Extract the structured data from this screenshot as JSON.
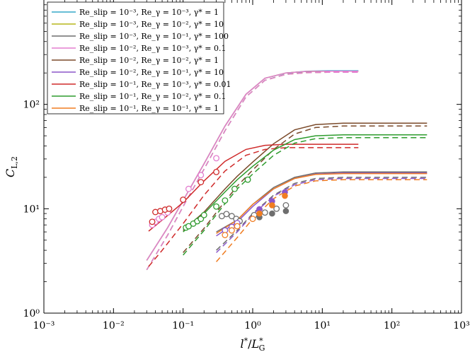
{
  "chart_data": {
    "type": "line",
    "title": "",
    "xlabel": "l*/L*_G",
    "ylabel": "C_L,2",
    "xscale": "log",
    "yscale": "log",
    "xlim": [
      0.001,
      1000
    ],
    "ylim": [
      1,
      1000
    ],
    "x_ticks": [
      0.001,
      0.01,
      0.1,
      1,
      10,
      100,
      1000
    ],
    "x_tick_labels": [
      "10⁻³",
      "10⁻²",
      "10⁻¹",
      "10⁰",
      "10¹",
      "10²",
      "10³"
    ],
    "y_ticks": [
      1,
      10,
      100
    ],
    "y_tick_labels": [
      "10⁰",
      "10¹",
      "10²"
    ],
    "legend_position": "top-left",
    "series": [
      {
        "name": "Re_slip = 10⁻³, Re_γ = 10⁻³, γ* = 1",
        "color": "#35a8c9",
        "solid": [
          [
            0.03,
            3.2
          ],
          [
            0.06,
            6.6
          ],
          [
            0.1,
            12
          ],
          [
            0.2,
            27
          ],
          [
            0.4,
            62
          ],
          [
            0.8,
            125
          ],
          [
            1.5,
            178
          ],
          [
            3,
            200
          ],
          [
            6,
            208
          ],
          [
            12,
            210
          ],
          [
            33,
            210
          ]
        ],
        "dashed": [
          [
            0.03,
            2.6
          ],
          [
            0.06,
            5.6
          ],
          [
            0.1,
            10.5
          ],
          [
            0.2,
            24
          ],
          [
            0.4,
            56
          ],
          [
            0.8,
            118
          ],
          [
            1.5,
            170
          ],
          [
            3,
            195
          ],
          [
            6,
            203
          ],
          [
            12,
            205
          ],
          [
            33,
            205
          ]
        ],
        "markers_open": [],
        "markers_filled": []
      },
      {
        "name": "Re_slip = 10⁻³, Re_γ = 10⁻², γ* = 10",
        "color": "#b5b61a",
        "solid": [
          [
            0.03,
            3.2
          ],
          [
            0.06,
            6.6
          ],
          [
            0.1,
            12
          ],
          [
            0.2,
            27
          ],
          [
            0.4,
            62
          ],
          [
            0.8,
            125
          ],
          [
            1.5,
            178
          ],
          [
            3,
            200
          ],
          [
            6,
            207
          ],
          [
            12,
            208
          ],
          [
            33,
            208
          ]
        ],
        "dashed": [
          [
            0.03,
            2.6
          ],
          [
            0.06,
            5.6
          ],
          [
            0.1,
            10.5
          ],
          [
            0.2,
            24
          ],
          [
            0.4,
            56
          ],
          [
            0.8,
            118
          ],
          [
            1.5,
            170
          ],
          [
            3,
            194
          ],
          [
            6,
            201
          ],
          [
            12,
            203
          ],
          [
            33,
            203
          ]
        ],
        "markers_open": [],
        "markers_filled": []
      },
      {
        "name": "Re_slip = 10⁻³, Re_γ = 10⁻¹, γ* = 100",
        "color": "#6e6e6e",
        "solid": [
          [
            0.3,
            6
          ],
          [
            0.6,
            7.8
          ],
          [
            1,
            11
          ],
          [
            2,
            16
          ],
          [
            4,
            20
          ],
          [
            8,
            22
          ],
          [
            20,
            22.5
          ],
          [
            100,
            22.5
          ],
          [
            320,
            22.5
          ]
        ],
        "dashed": [
          [
            0.3,
            4
          ],
          [
            0.6,
            6.2
          ],
          [
            1,
            9
          ],
          [
            2,
            13.5
          ],
          [
            4,
            17.5
          ],
          [
            8,
            19.5
          ],
          [
            20,
            20
          ],
          [
            100,
            20
          ],
          [
            320,
            20
          ]
        ],
        "markers_open": [
          [
            0.36,
            8.5
          ],
          [
            0.42,
            8.9
          ],
          [
            0.5,
            8.5
          ],
          [
            0.58,
            8
          ],
          [
            0.65,
            7.6
          ],
          [
            1.05,
            8.7
          ],
          [
            1.5,
            9.2
          ],
          [
            2.2,
            10
          ],
          [
            3,
            10.8
          ]
        ],
        "markers_filled": [
          [
            1.25,
            8.3
          ],
          [
            1.9,
            9
          ],
          [
            3,
            9.5
          ]
        ]
      },
      {
        "name": "Re_slip = 10⁻², Re_γ = 10⁻³, γ* = 0.1",
        "color": "#e37dcf",
        "solid": [
          [
            0.03,
            3.2
          ],
          [
            0.06,
            6.6
          ],
          [
            0.1,
            12
          ],
          [
            0.2,
            27
          ],
          [
            0.4,
            62
          ],
          [
            0.8,
            125
          ],
          [
            1.5,
            178
          ],
          [
            3,
            200
          ],
          [
            6,
            207
          ],
          [
            12,
            208
          ],
          [
            33,
            208
          ]
        ],
        "dashed": [
          [
            0.03,
            2.6
          ],
          [
            0.06,
            5.6
          ],
          [
            0.1,
            10.5
          ],
          [
            0.2,
            24
          ],
          [
            0.4,
            56
          ],
          [
            0.8,
            118
          ],
          [
            1.5,
            170
          ],
          [
            3,
            194
          ],
          [
            6,
            201
          ],
          [
            12,
            203
          ],
          [
            33,
            203
          ]
        ],
        "markers_open": [
          [
            0.036,
            7
          ],
          [
            0.04,
            7.5
          ],
          [
            0.045,
            8
          ],
          [
            0.05,
            8.3
          ],
          [
            0.06,
            9.2
          ],
          [
            0.12,
            15.5
          ],
          [
            0.18,
            21
          ],
          [
            0.3,
            30.5
          ]
        ],
        "markers_filled": []
      },
      {
        "name": "Re_slip = 10⁻², Re_γ = 10⁻², γ* = 1",
        "color": "#7b4a2a",
        "solid": [
          [
            0.1,
            6.2
          ],
          [
            0.2,
            9.3
          ],
          [
            0.4,
            15.5
          ],
          [
            0.6,
            20.5
          ],
          [
            1,
            28
          ],
          [
            2,
            42
          ],
          [
            4,
            57
          ],
          [
            8,
            64
          ],
          [
            20,
            66
          ],
          [
            100,
            66
          ],
          [
            320,
            66
          ]
        ],
        "dashed": [
          [
            0.1,
            3.8
          ],
          [
            0.2,
            6.5
          ],
          [
            0.4,
            11.8
          ],
          [
            0.6,
            16.5
          ],
          [
            1,
            23.5
          ],
          [
            2,
            37
          ],
          [
            4,
            52
          ],
          [
            8,
            60
          ],
          [
            20,
            62
          ],
          [
            100,
            62
          ],
          [
            320,
            62
          ]
        ],
        "markers_open": [],
        "markers_filled": []
      },
      {
        "name": "Re_slip = 10⁻², Re_γ = 10⁻¹, γ* = 10",
        "color": "#8b57c9",
        "solid": [
          [
            0.3,
            5.5
          ],
          [
            0.6,
            7.5
          ],
          [
            1,
            10.5
          ],
          [
            2,
            15.5
          ],
          [
            4,
            19.5
          ],
          [
            8,
            21.5
          ],
          [
            20,
            22
          ],
          [
            100,
            22
          ],
          [
            320,
            22
          ]
        ],
        "dashed": [
          [
            0.3,
            3.8
          ],
          [
            0.6,
            6
          ],
          [
            1,
            8.8
          ],
          [
            2,
            13.2
          ],
          [
            4,
            17
          ],
          [
            8,
            19
          ],
          [
            20,
            19.5
          ],
          [
            100,
            19.5
          ],
          [
            320,
            19.5
          ]
        ],
        "markers_open": [
          [
            0.4,
            6.2
          ],
          [
            0.5,
            6.7
          ],
          [
            0.6,
            7.3
          ]
        ],
        "markers_filled": [
          [
            1.25,
            9.9
          ],
          [
            1.9,
            11.8
          ],
          [
            2.9,
            14.4
          ]
        ]
      },
      {
        "name": "Re_slip = 10⁻¹, Re_γ = 10⁻³, γ* = 0.01",
        "color": "#cf2a2a",
        "solid": [
          [
            0.032,
            6.1
          ],
          [
            0.05,
            7.8
          ],
          [
            0.1,
            11.5
          ],
          [
            0.2,
            18.5
          ],
          [
            0.4,
            28.5
          ],
          [
            0.8,
            37
          ],
          [
            1.5,
            40.5
          ],
          [
            3,
            41.5
          ],
          [
            10,
            41.5
          ],
          [
            33,
            41.5
          ]
        ],
        "dashed": [
          [
            0.032,
            2.8
          ],
          [
            0.05,
            4
          ],
          [
            0.1,
            7.2
          ],
          [
            0.2,
            13.5
          ],
          [
            0.4,
            23
          ],
          [
            0.8,
            32.5
          ],
          [
            1.5,
            37
          ],
          [
            3,
            38.5
          ],
          [
            10,
            38.5
          ],
          [
            33,
            38.5
          ]
        ],
        "markers_open": [
          [
            0.036,
            7.5
          ],
          [
            0.04,
            9.3
          ],
          [
            0.047,
            9.5
          ],
          [
            0.055,
            9.8
          ],
          [
            0.063,
            10
          ],
          [
            0.1,
            12.2
          ],
          [
            0.18,
            18
          ],
          [
            0.3,
            22.5
          ]
        ],
        "markers_filled": []
      },
      {
        "name": "Re_slip = 10⁻¹, Re_γ = 10⁻², γ* = 0.1",
        "color": "#2e9c2e",
        "solid": [
          [
            0.1,
            6
          ],
          [
            0.2,
            9
          ],
          [
            0.4,
            14.5
          ],
          [
            0.6,
            19
          ],
          [
            1,
            25.5
          ],
          [
            2,
            36.5
          ],
          [
            4,
            46
          ],
          [
            8,
            50
          ],
          [
            20,
            51
          ],
          [
            100,
            51
          ],
          [
            320,
            51
          ]
        ],
        "dashed": [
          [
            0.1,
            3.6
          ],
          [
            0.2,
            6.2
          ],
          [
            0.4,
            11.2
          ],
          [
            0.6,
            15.5
          ],
          [
            1,
            21.5
          ],
          [
            2,
            32.5
          ],
          [
            4,
            42.5
          ],
          [
            8,
            47
          ],
          [
            20,
            48
          ],
          [
            100,
            48
          ],
          [
            320,
            48
          ]
        ],
        "markers_open": [
          [
            0.11,
            6.6
          ],
          [
            0.12,
            6.8
          ],
          [
            0.14,
            7.2
          ],
          [
            0.16,
            7.6
          ],
          [
            0.18,
            8
          ],
          [
            0.2,
            8.7
          ],
          [
            0.3,
            10.5
          ],
          [
            0.4,
            12
          ],
          [
            0.55,
            15.5
          ],
          [
            0.85,
            19
          ]
        ],
        "markers_filled": []
      },
      {
        "name": "Re_slip = 10⁻¹, Re_γ = 10⁻¹, γ* = 1",
        "color": "#f07d22",
        "solid": [
          [
            0.3,
            5.8
          ],
          [
            0.6,
            7.8
          ],
          [
            1,
            11
          ],
          [
            2,
            15.5
          ],
          [
            4,
            19.5
          ],
          [
            8,
            21.3
          ],
          [
            20,
            21.7
          ],
          [
            100,
            21.7
          ],
          [
            320,
            21.7
          ]
        ],
        "dashed": [
          [
            0.3,
            3.1
          ],
          [
            0.6,
            5.3
          ],
          [
            1,
            8
          ],
          [
            2,
            12.5
          ],
          [
            4,
            16.5
          ],
          [
            8,
            18.5
          ],
          [
            20,
            19
          ],
          [
            100,
            19
          ],
          [
            320,
            19
          ]
        ],
        "markers_open": [
          [
            0.4,
            5.6
          ],
          [
            0.5,
            6.2
          ],
          [
            0.6,
            6.8
          ],
          [
            1,
            8
          ]
        ],
        "markers_filled": [
          [
            1.25,
            9
          ],
          [
            1.9,
            10.8
          ],
          [
            2.9,
            13.3
          ]
        ]
      }
    ]
  }
}
